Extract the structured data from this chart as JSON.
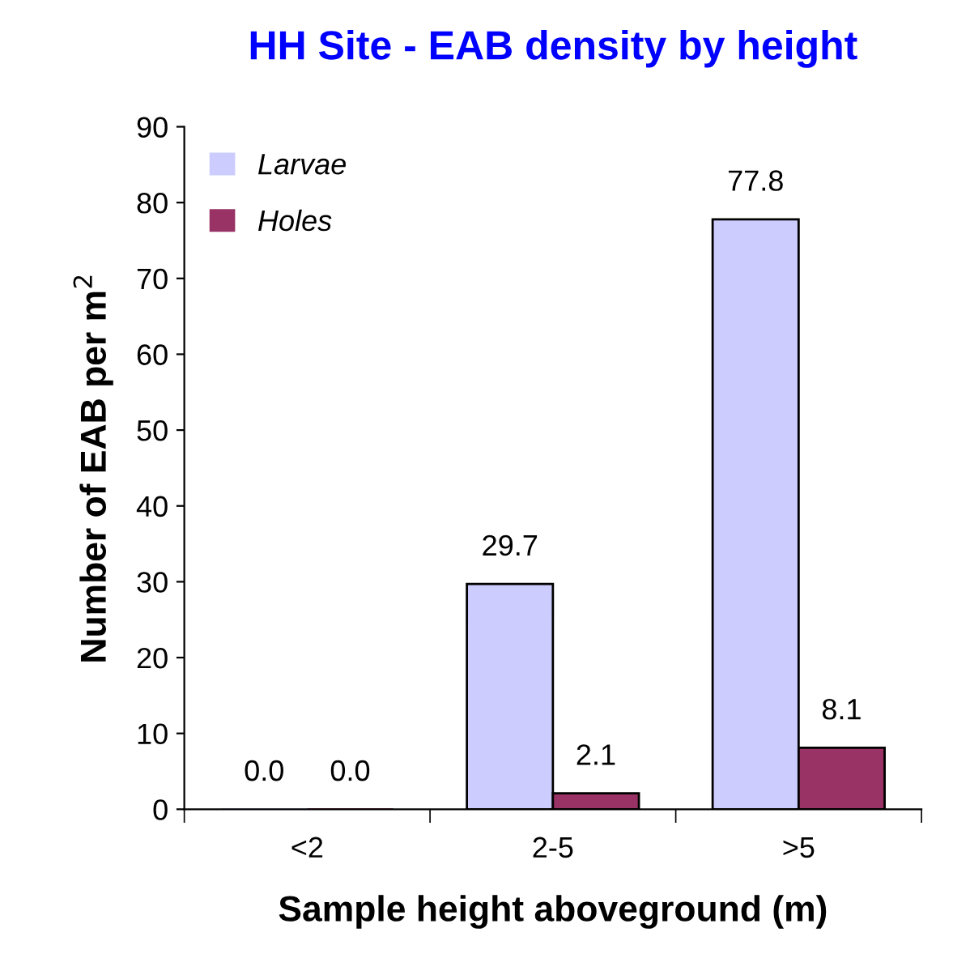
{
  "chart_data": {
    "type": "bar",
    "title": "HH Site - EAB density by height",
    "xlabel": "Sample height aboveground (m)",
    "ylabel": "Number of EAB per m$^{2}$",
    "categories": [
      "<2",
      "2-5",
      ">5"
    ],
    "series": [
      {
        "name": "Larvae",
        "color": "#ccccff",
        "values": [
          0,
          29.7,
          77.8
        ],
        "value_labels": [
          "0.0",
          "29.7",
          "77.8"
        ]
      },
      {
        "name": "Holes",
        "color": "#993366",
        "values": [
          0,
          2.1,
          8.1
        ],
        "value_labels": [
          "0.0",
          "2.1",
          "8.1"
        ]
      }
    ],
    "ylim": [
      0,
      90
    ],
    "yticks": [
      0,
      10,
      20,
      30,
      40,
      50,
      60,
      70,
      80,
      90
    ],
    "grid": false,
    "legend": "top left"
  }
}
